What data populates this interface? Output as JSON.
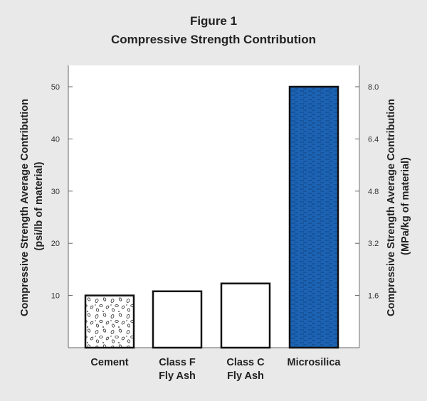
{
  "chart_data": {
    "type": "bar",
    "title": "Figure 1",
    "subtitle": "Compressive Strength Contribution",
    "categories": [
      [
        "Cement"
      ],
      [
        "Class F",
        "Fly Ash"
      ],
      [
        "Class C",
        "Fly Ash"
      ],
      [
        "Microsilica"
      ]
    ],
    "values": [
      10,
      10.8,
      12.3,
      50
    ],
    "bar_fills": [
      "pattern-speckle",
      "#ffffff",
      "#ffffff",
      "pattern-blue-dash"
    ],
    "ylabel_left": [
      "Compressive Strength Average Contribution",
      "(psi/lb of material)"
    ],
    "ylabel_right": [
      "Compressive Strength Average Contribution",
      "(MPa/kg of material)"
    ],
    "ylim": [
      0,
      55
    ],
    "left_ticks": [
      10,
      20,
      30,
      40,
      50
    ],
    "right_ticks": [
      {
        "value": 10,
        "label": "1.6"
      },
      {
        "value": 20,
        "label": "3.2"
      },
      {
        "value": 30,
        "label": "4.8"
      },
      {
        "value": 40,
        "label": "6.4"
      },
      {
        "value": 50,
        "label": "8.0"
      }
    ],
    "grid": false,
    "accent_color": "#1d63b4"
  }
}
